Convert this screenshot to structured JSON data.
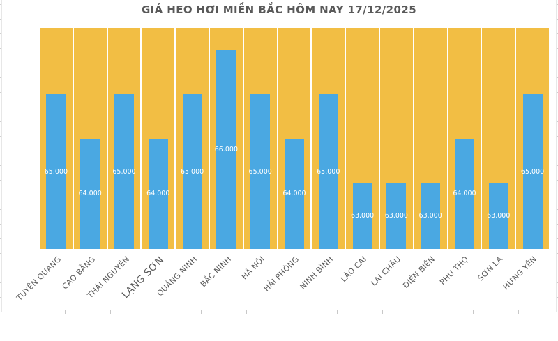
{
  "chart_data": {
    "type": "bar",
    "title": "GIÁ HEO HƠI MIỀN BẮC HÔM NAY 17/12/2025",
    "categories": [
      "TUYÊN QUANG",
      "CAO BẰNG",
      "THÁI NGUYÊN",
      "LẠNG SƠN",
      "QUẢNG NINH",
      "BẮC NINH",
      "HÀ NỘI",
      "HẢI PHÒNG",
      "NINH BÌNH",
      "LÀO CAI",
      "LAI CHÂU",
      "ĐIỆN BIÊN",
      "PHÚ THỌ",
      "SƠN LA",
      "HƯNG YÊN"
    ],
    "values": [
      65000,
      64000,
      65000,
      64000,
      65000,
      66000,
      65000,
      64000,
      65000,
      63000,
      63000,
      63000,
      64000,
      63000,
      65000
    ],
    "value_labels": [
      "65.000",
      "64.000",
      "65.000",
      "64.000",
      "65.000",
      "66.000",
      "65.000",
      "64.000",
      "65.000",
      "63.000",
      "63.000",
      "63.000",
      "64.000",
      "63.000",
      "65.000"
    ],
    "xlabel": "",
    "ylabel": "",
    "ylim": [
      61500,
      66500
    ],
    "grid": false,
    "legend": false,
    "value_label_position": "inside-center",
    "category_label_rotation_deg": -45,
    "emphasized_category_index": 3,
    "colors": {
      "bar": "#4AA8E2",
      "plot_background": "#F2BE44",
      "gridline_between_categories": "#FFFFFF",
      "title_text": "#595959",
      "category_label_text": "#595959",
      "value_label_text": "#FFFFFF",
      "spreadsheet_grid": "#E7E7E7"
    }
  }
}
